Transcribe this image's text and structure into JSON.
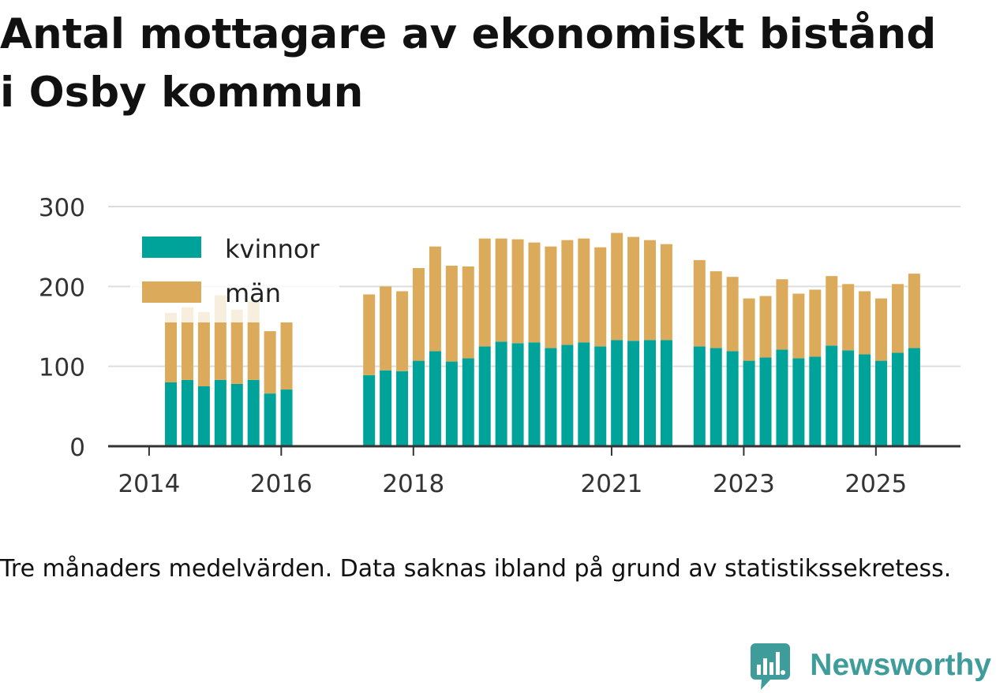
{
  "chart_data": {
    "type": "bar",
    "stacked": true,
    "title": [
      "Antal mottagare av ekonomiskt bistånd",
      "i Osby kommun"
    ],
    "caption": "Tre månaders medelvärden. Data saknas ibland på grund av statistikssekretess.",
    "xlabel": "",
    "ylabel": "",
    "x": [
      2014.33,
      2014.58,
      2014.83,
      2015.08,
      2015.33,
      2015.58,
      2015.83,
      2016.08,
      2017.33,
      2017.58,
      2017.83,
      2018.08,
      2018.33,
      2018.58,
      2018.83,
      2019.08,
      2019.33,
      2019.58,
      2019.83,
      2020.08,
      2020.33,
      2020.58,
      2020.83,
      2021.08,
      2021.33,
      2021.58,
      2021.83,
      2022.33,
      2022.58,
      2022.83,
      2023.08,
      2023.33,
      2023.58,
      2023.83,
      2024.08,
      2024.33,
      2024.58,
      2024.83,
      2025.08,
      2025.33,
      2025.58
    ],
    "series": [
      {
        "name": "kvinnor",
        "color": "#00a39a",
        "values": [
          80,
          83,
          75,
          83,
          78,
          83,
          66,
          71,
          89,
          95,
          94,
          107,
          119,
          106,
          110,
          125,
          131,
          129,
          130,
          123,
          127,
          130,
          125,
          133,
          132,
          133,
          133,
          125,
          123,
          119,
          107,
          111,
          121,
          110,
          112,
          126,
          120,
          115,
          107,
          117,
          123
        ]
      },
      {
        "name": "män",
        "color": "#dbab5b",
        "values": [
          87,
          91,
          93,
          106,
          93,
          99,
          78,
          84,
          101,
          105,
          100,
          116,
          131,
          120,
          115,
          135,
          129,
          130,
          125,
          127,
          131,
          130,
          124,
          134,
          130,
          125,
          120,
          108,
          96,
          93,
          78,
          77,
          88,
          81,
          84,
          87,
          83,
          79,
          78,
          86,
          93
        ]
      }
    ],
    "xlim": [
      2013.38,
      2026.28
    ],
    "ylim": [
      0,
      300
    ],
    "x_ticks": [
      2014,
      2016,
      2018,
      2021,
      2023,
      2025
    ],
    "x_tick_labels": [
      "2014",
      "2016",
      "2018",
      "2021",
      "2023",
      "2025"
    ],
    "y_ticks": [
      0,
      100,
      200,
      300
    ],
    "y_tick_labels": [
      "0",
      "100",
      "200",
      "300"
    ],
    "grid": true,
    "legend": "top-left"
  },
  "branding": {
    "logo_text": "Newsworthy",
    "logo_icon": "bar-chart-speech-bubble-icon",
    "color": "#3e9c9b"
  },
  "colors": {
    "title": "#111111",
    "axis": "#333333",
    "grid": "#dddddd",
    "legend_background": "#ffffff"
  }
}
